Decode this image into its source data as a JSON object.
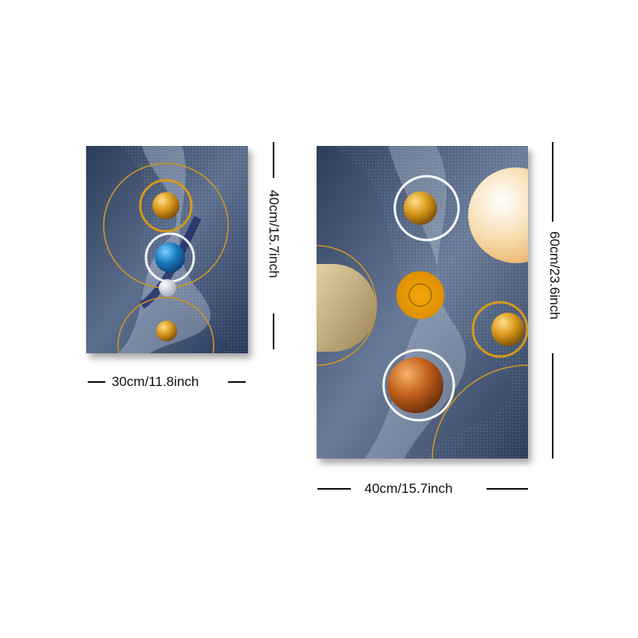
{
  "product": {
    "panels": [
      {
        "id": "small",
        "width_label": "30cm/11.8inch",
        "height_label": "40cm/15.7inch"
      },
      {
        "id": "large",
        "width_label": "40cm/15.7inch",
        "height_label": "60cm/23.6inch"
      }
    ]
  },
  "colors": {
    "navy_background": "#2c3e5c",
    "slate_light": "#8a9ab3",
    "gold": "#d39a1c",
    "copper": "#c2611d",
    "blue_sphere": "#1e7fc4",
    "cream": "#f6d9a6",
    "line_white": "#ffffff"
  },
  "artwork": {
    "style": "abstract geometric spheres and rings",
    "icons": [
      "gold-sphere-icon",
      "blue-sphere-icon",
      "copper-sphere-icon",
      "gold-ring-icon",
      "glowing-ring-icon"
    ]
  }
}
